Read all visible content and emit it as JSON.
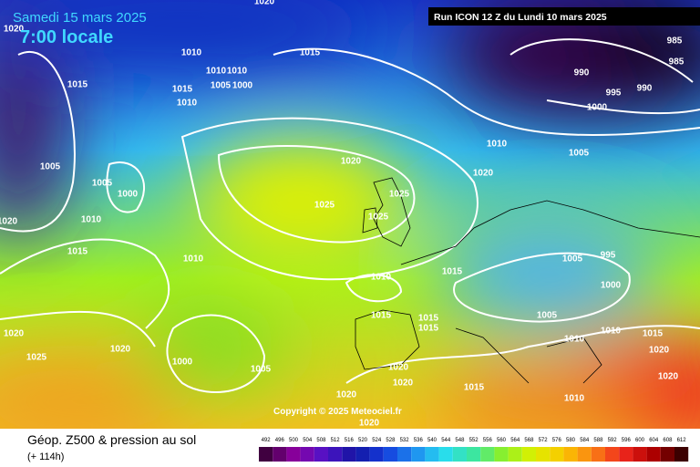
{
  "header": {
    "date": "Samedi 15 mars 2025",
    "time": "7:00 locale",
    "run": "Run ICON 12 Z du Lundi 10 mars 2025"
  },
  "isobar_labels": [
    1020,
    1020,
    1010,
    1015,
    1010,
    1010,
    1015,
    1015,
    1005,
    1000,
    1010,
    985,
    990,
    985,
    995,
    990,
    1000,
    1010,
    1005,
    1020,
    1020,
    1005,
    1005,
    1000,
    1025,
    1025,
    1025,
    1010,
    1020,
    995,
    1005,
    1015,
    1010,
    1015,
    1010,
    1000,
    1005,
    1015,
    1015,
    1015,
    1010,
    1015,
    1010,
    1020,
    1020,
    1025,
    1000,
    1005,
    1020,
    1020,
    1020,
    1015,
    1020,
    1020,
    1010,
    1020
  ],
  "copyright": "Copyright © 2025 Meteociel.fr",
  "footer": {
    "title": "Géop. Z500 & pression au sol",
    "lead": "(+ 114h)"
  },
  "scale": {
    "labels": [
      492,
      496,
      500,
      504,
      508,
      512,
      516,
      520,
      524,
      528,
      532,
      536,
      540,
      544,
      548,
      552,
      556,
      560,
      564,
      568,
      572,
      576,
      580,
      584,
      588,
      592,
      596,
      600,
      604,
      608,
      612
    ]
  }
}
